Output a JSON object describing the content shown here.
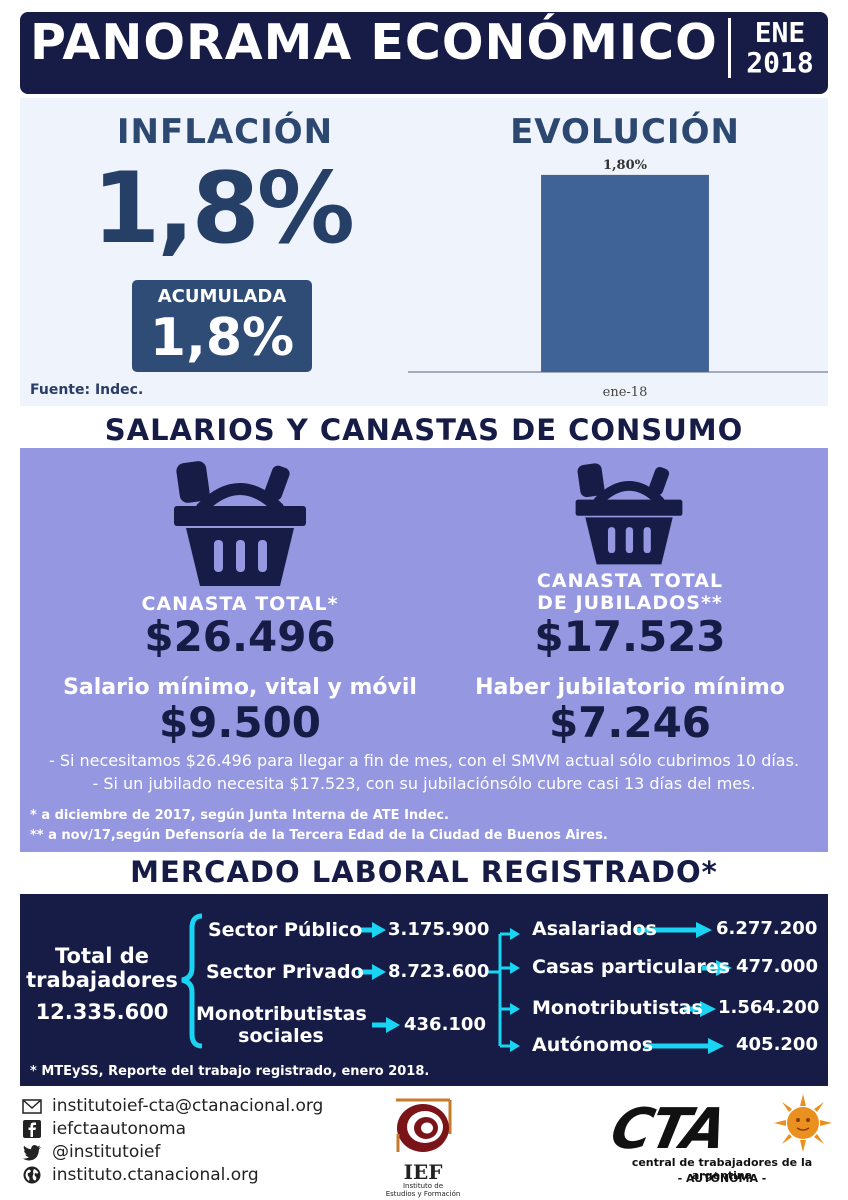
{
  "header": {
    "title": "PANORAMA ECONÓMICO",
    "month": "ENE",
    "year": "2018"
  },
  "inflacion": {
    "title": "INFLACIÓN",
    "value": "1,8%",
    "acumulada_label": "ACUMULADA",
    "acumulada_value": "1,8%",
    "fuente": "Fuente: Indec."
  },
  "evolucion": {
    "title": "EVOLUCIÓN"
  },
  "chart_data": {
    "type": "bar",
    "categories": [
      "ene-18"
    ],
    "values": [
      1.8
    ],
    "data_labels": [
      "1,80%"
    ],
    "title": "EVOLUCIÓN",
    "xlabel": "",
    "ylabel": "",
    "ylim": [
      0,
      2.0
    ],
    "grid": false,
    "color": "#3f6297"
  },
  "salarios": {
    "heading": "SALARIOS Y CANASTAS DE CONSUMO",
    "canasta_total_label": "CANASTA TOTAL*",
    "canasta_total_value": "$26.496",
    "canasta_jub_label_1": "CANASTA TOTAL",
    "canasta_jub_label_2": "DE JUBILADOS**",
    "canasta_jub_value": "$17.523",
    "smvm_label": "Salario mínimo, vital y móvil",
    "smvm_value": "$9.500",
    "haber_label": "Haber jubilatorio mínimo",
    "haber_value": "$7.246",
    "note_1": "- Si necesitamos $26.496 para llegar a fin de mes, con el SMVM actual sólo cubrimos 10 días.",
    "note_2": "- Si un jubilado necesita $17.523, con su jubilaciónsólo cubre casi 13 días del mes.",
    "footnote_1": "* a diciembre de 2017, según Junta Interna de ATE Indec.",
    "footnote_2": "** a nov/17,según Defensoría de la Tercera Edad de la Ciudad de Buenos Aires."
  },
  "mercado": {
    "heading": "MERCADO LABORAL REGISTRADO*",
    "total_label_1": "Total de",
    "total_label_2": "trabajadores",
    "total_value": "12.335.600",
    "sectors": [
      {
        "label": "Sector Público",
        "value": "3.175.900"
      },
      {
        "label": "Sector Privado",
        "value": "8.723.600"
      },
      {
        "label_1": "Monotributistas",
        "label_2": "sociales",
        "value": "436.100"
      }
    ],
    "private_breakdown": [
      {
        "label": "Asalariados",
        "value": "6.277.200"
      },
      {
        "label": "Casas particulares",
        "value": "477.000"
      },
      {
        "label": "Monotributistas",
        "value": "1.564.200"
      },
      {
        "label": "Autónomos",
        "value": "405.200"
      }
    ],
    "footnote": "* MTEySS, Reporte del trabajo registrado, enero 2018."
  },
  "footer": {
    "email": "institutoief-cta@ctanacional.org",
    "facebook": "iefctaautonoma",
    "twitter": "@institutoief",
    "web": "instituto.ctanacional.org",
    "ief_name": "IEF",
    "ief_sub_1": "Instituto de",
    "ief_sub_2": "Estudios y Formación",
    "cta_name": "CTA",
    "cta_sub": "central de trabajadores de la argentina",
    "cta_sub2": "- AUTÓNOMA -"
  },
  "colors": {
    "navy": "#161c45",
    "blue": "#2e4c76",
    "bar": "#3f6297",
    "lavender": "#9597e1",
    "cyan": "#19d4f2"
  }
}
